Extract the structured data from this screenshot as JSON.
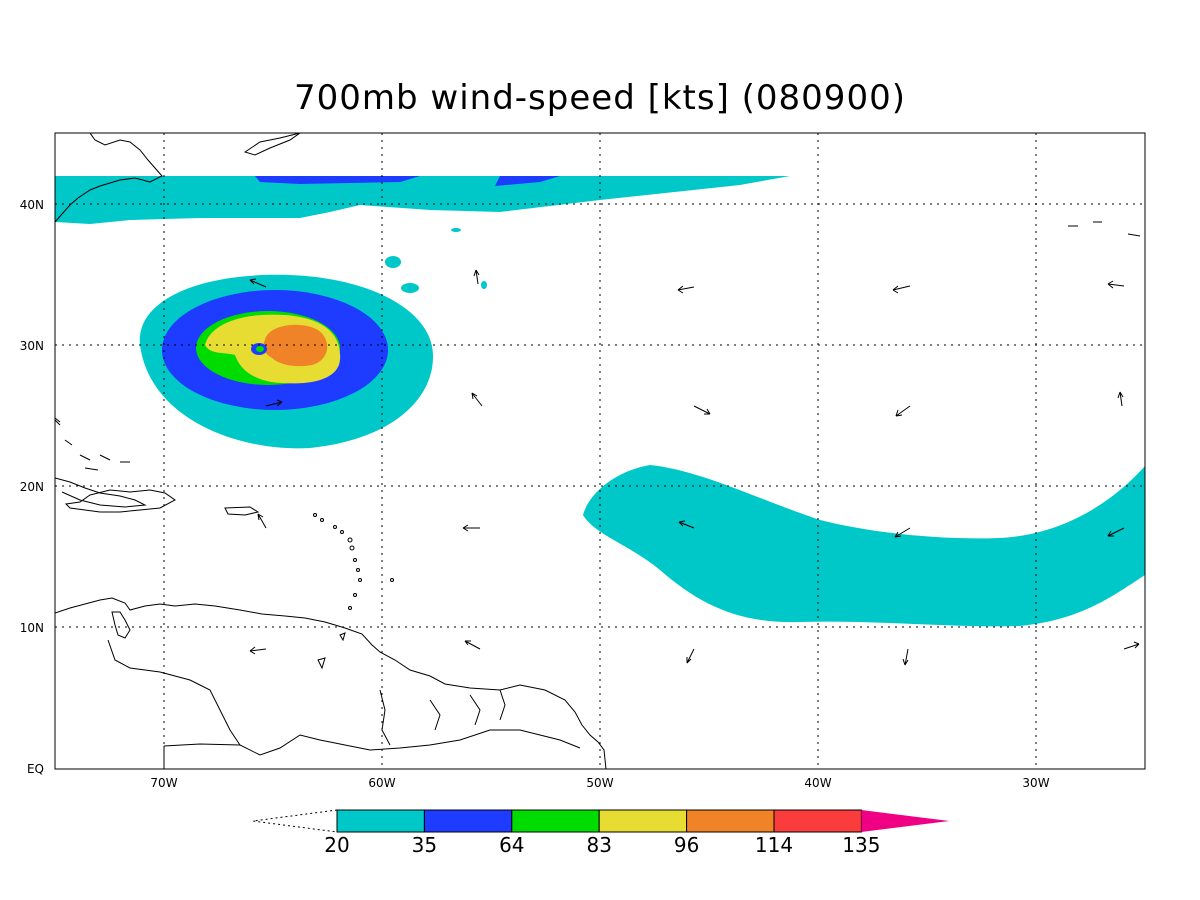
{
  "title": "700mb wind-speed [kts] (080900)",
  "axes": {
    "x_ticks": [
      "70W",
      "60W",
      "50W",
      "40W",
      "30W"
    ],
    "y_ticks": [
      "EQ",
      "10N",
      "20N",
      "30N",
      "40N"
    ]
  },
  "colorbar": {
    "labels": [
      "20",
      "35",
      "64",
      "83",
      "96",
      "114",
      "135"
    ],
    "colors": [
      "#00c8c8",
      "#1e3cff",
      "#00dc00",
      "#e6dc32",
      "#f08228",
      "#fa3c3c",
      "#f00082"
    ]
  },
  "colors": {
    "land_outline": "#000000",
    "grid": "#000000",
    "background": "#ffffff"
  }
}
